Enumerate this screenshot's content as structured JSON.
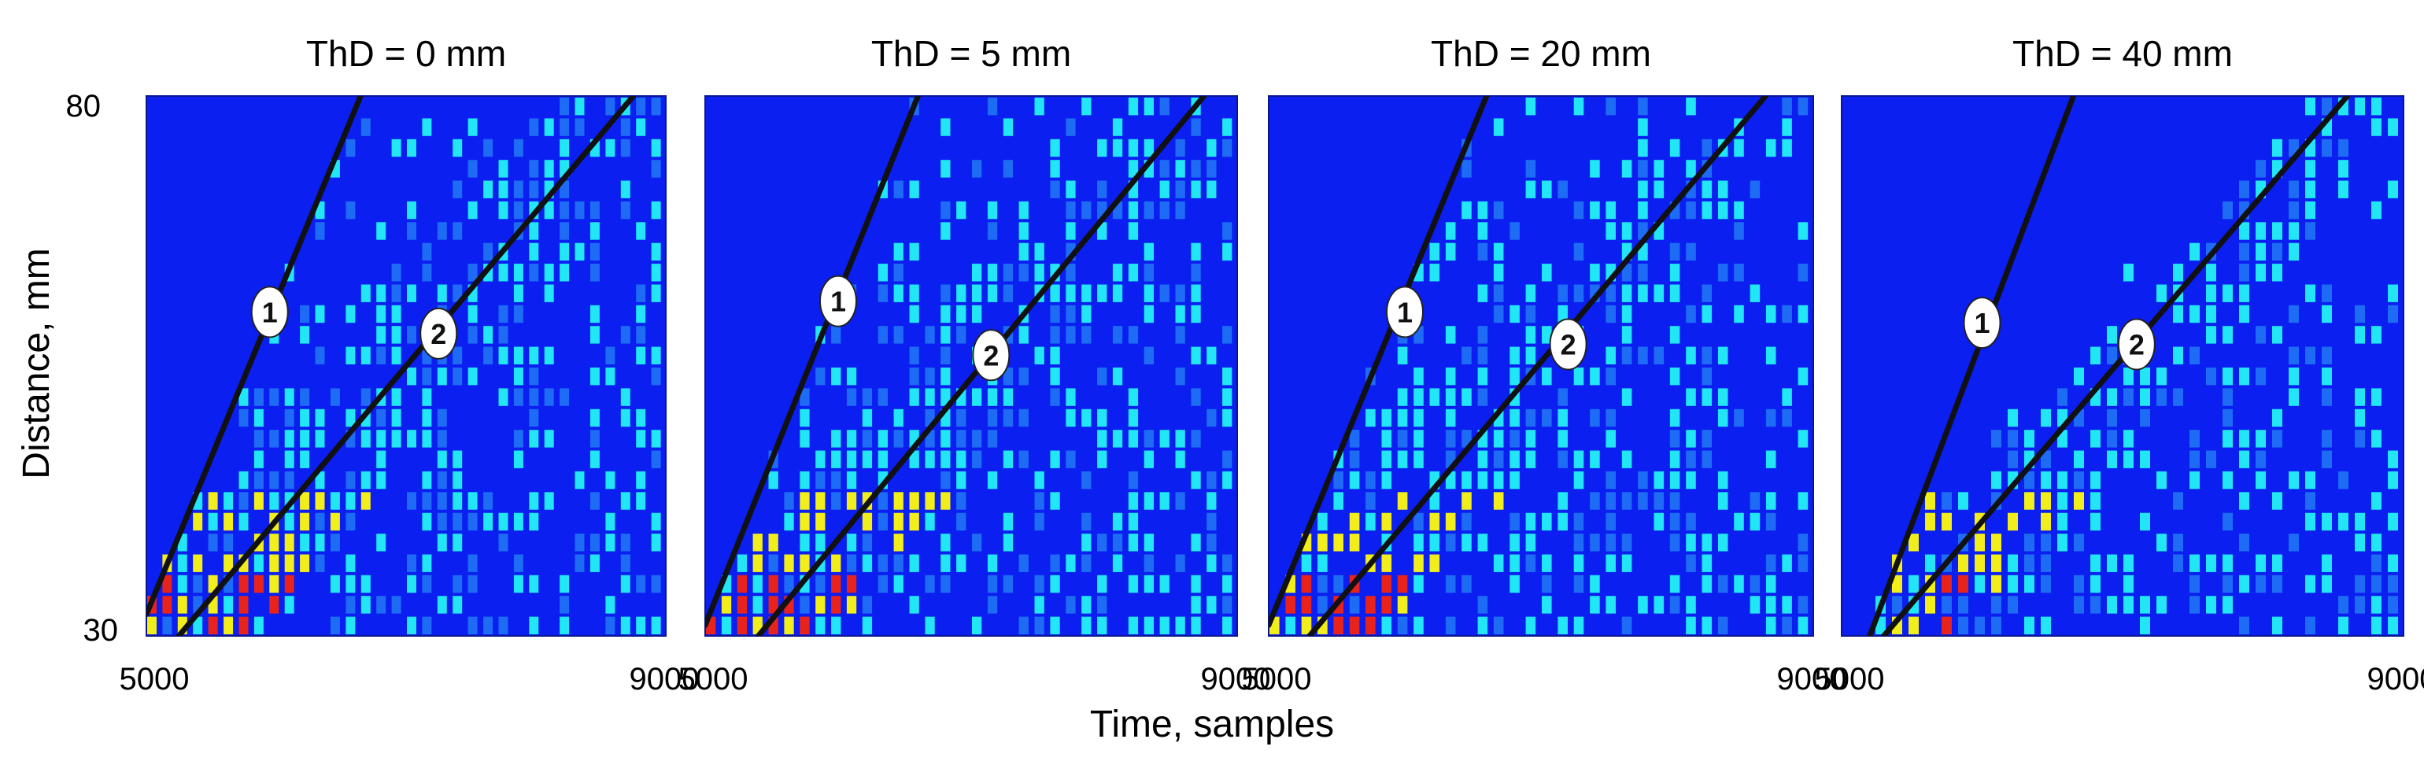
{
  "figure": {
    "ylabel": "Distance, mm",
    "xlabel": "Time, samples",
    "y_ticks": [
      "80",
      "30"
    ]
  },
  "colors": {
    "background_blue": "#0a1ff0",
    "mid_blue": "#1e6bf5",
    "cyan": "#22e6f5",
    "yellow": "#f2ee1c",
    "red": "#e8231c",
    "line": "#111111",
    "marker_fill": "#ffffff"
  },
  "chart_data": [
    {
      "type": "heatmap",
      "title": "ThD = 0 mm",
      "x_ticks": [
        "5000",
        "9000"
      ],
      "xlim": [
        5000,
        9000
      ],
      "ylim": [
        30,
        80
      ],
      "lines": [
        {
          "label": "1",
          "points": [
            [
              5000,
              32
            ],
            [
              6650,
              80
            ]
          ],
          "marker": [
            5950,
            60
          ]
        },
        {
          "label": "2",
          "points": [
            [
              5250,
              30
            ],
            [
              8750,
              80
            ]
          ],
          "marker": [
            7250,
            58
          ]
        }
      ]
    },
    {
      "type": "heatmap",
      "title": "ThD = 5 mm",
      "x_ticks": [
        "5000",
        "9000"
      ],
      "xlim": [
        5000,
        9000
      ],
      "ylim": [
        30,
        80
      ],
      "lines": [
        {
          "label": "1",
          "points": [
            [
              5000,
              31
            ],
            [
              6600,
              80
            ]
          ],
          "marker": [
            6000,
            61
          ]
        },
        {
          "label": "2",
          "points": [
            [
              5400,
              30
            ],
            [
              8750,
              80
            ]
          ],
          "marker": [
            7150,
            56
          ]
        }
      ]
    },
    {
      "type": "heatmap",
      "title": "ThD = 20 mm",
      "x_ticks": [
        "5000",
        "9000"
      ],
      "xlim": [
        5000,
        9000
      ],
      "ylim": [
        30,
        80
      ],
      "lines": [
        {
          "label": "1",
          "points": [
            [
              5000,
              31
            ],
            [
              6600,
              80
            ]
          ],
          "marker": [
            6000,
            60
          ]
        },
        {
          "label": "2",
          "points": [
            [
              5300,
              30
            ],
            [
              8650,
              80
            ]
          ],
          "marker": [
            7200,
            57
          ]
        }
      ]
    },
    {
      "type": "heatmap",
      "title": "ThD = 40 mm",
      "x_ticks": [
        "5000",
        "9000"
      ],
      "xlim": [
        5000,
        9000
      ],
      "ylim": [
        30,
        80
      ],
      "lines": [
        {
          "label": "1",
          "points": [
            [
              5200,
              30
            ],
            [
              6650,
              80
            ]
          ],
          "marker": [
            6000,
            59
          ]
        },
        {
          "label": "2",
          "points": [
            [
              5300,
              30
            ],
            [
              8600,
              80
            ]
          ],
          "marker": [
            7100,
            57
          ]
        }
      ]
    }
  ]
}
